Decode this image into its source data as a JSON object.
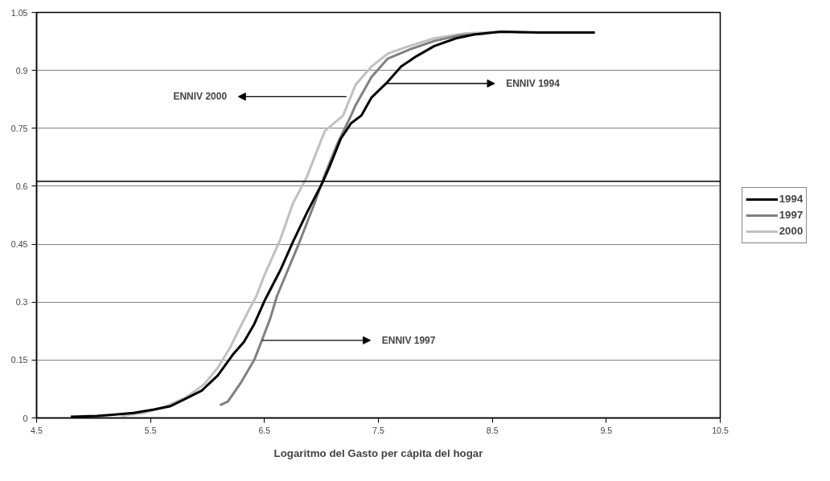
{
  "chart_data": {
    "type": "line",
    "xlabel": "Logaritmo del Gasto per cápita del hogar",
    "xlim": [
      4.5,
      10.5
    ],
    "xticks": [
      4.5,
      5.5,
      6.5,
      7.5,
      8.5,
      9.5,
      10.5
    ],
    "ylim": [
      0,
      1.05
    ],
    "yticks": [
      0,
      0.15,
      0.3,
      0.45,
      0.6,
      0.75,
      0.9,
      1.05
    ],
    "grid": "y",
    "legend": "right",
    "marker": "none",
    "line_style": "solid",
    "series": [
      {
        "name": "1994",
        "color": "#000000",
        "x": [
          4.8,
          5.03,
          5.19,
          5.35,
          5.53,
          5.67,
          5.81,
          5.95,
          6.09,
          6.22,
          6.32,
          6.41,
          6.5,
          6.64,
          6.75,
          6.87,
          7.01,
          7.07,
          7.17,
          7.26,
          7.35,
          7.44,
          7.58,
          7.7,
          7.83,
          7.99,
          8.18,
          8.34,
          8.57,
          8.91,
          9.4
        ],
        "values": [
          0.003,
          0.005,
          0.009,
          0.013,
          0.022,
          0.03,
          0.05,
          0.071,
          0.11,
          0.163,
          0.197,
          0.243,
          0.303,
          0.383,
          0.456,
          0.53,
          0.61,
          0.65,
          0.723,
          0.763,
          0.783,
          0.83,
          0.87,
          0.91,
          0.936,
          0.963,
          0.983,
          0.993,
          1.0,
          0.998,
          0.998
        ]
      },
      {
        "name": "1997",
        "color": "#808080",
        "x": [
          6.11,
          6.18,
          6.29,
          6.41,
          6.48,
          6.55,
          6.61,
          6.8,
          6.94,
          7.03,
          7.14,
          7.26,
          7.3,
          7.44,
          7.58,
          7.79,
          7.99,
          8.2,
          8.45
        ],
        "values": [
          0.033,
          0.043,
          0.09,
          0.15,
          0.203,
          0.257,
          0.316,
          0.45,
          0.556,
          0.63,
          0.71,
          0.783,
          0.81,
          0.883,
          0.93,
          0.956,
          0.976,
          0.99,
          0.996
        ]
      },
      {
        "name": "2000",
        "color": "#c0c0c0",
        "x": [
          5.24,
          5.44,
          5.63,
          5.81,
          5.97,
          6.09,
          6.2,
          6.29,
          6.37,
          6.43,
          6.5,
          6.64,
          6.75,
          6.87,
          6.94,
          7.03,
          7.19,
          7.3,
          7.44,
          7.58,
          7.77,
          7.99,
          8.27,
          8.64,
          8.8
        ],
        "values": [
          0.005,
          0.013,
          0.03,
          0.053,
          0.087,
          0.13,
          0.183,
          0.237,
          0.283,
          0.316,
          0.37,
          0.463,
          0.556,
          0.623,
          0.676,
          0.743,
          0.783,
          0.863,
          0.91,
          0.943,
          0.963,
          0.983,
          0.996,
          1.0,
          0.998
        ]
      }
    ],
    "ref_lines": [
      {
        "axis": "y",
        "value": 0.613,
        "color": "#000000"
      }
    ],
    "annotations": [
      {
        "text": "ENNIV 2000",
        "x": 7.22,
        "y": 0.832
      },
      {
        "text": "ENNIV 1994",
        "x": 7.57,
        "y": 0.866
      },
      {
        "text": "ENNIV 1997",
        "x": 6.48,
        "y": 0.201
      }
    ]
  }
}
